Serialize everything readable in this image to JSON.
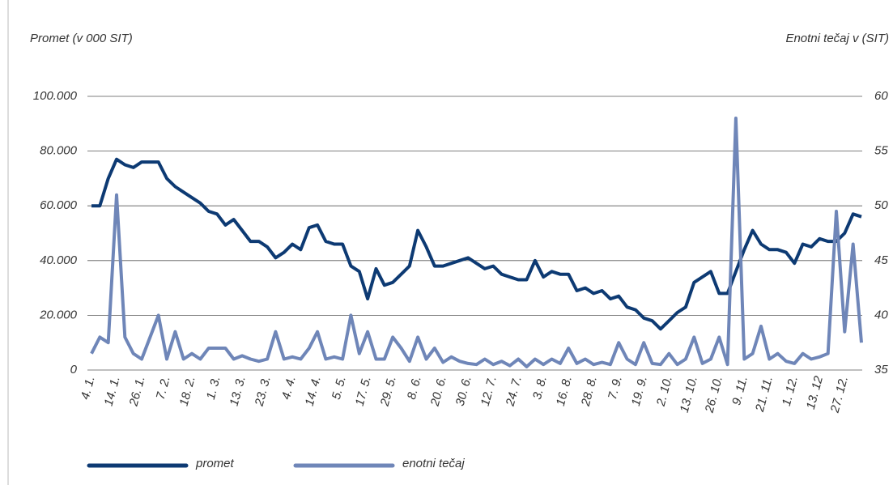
{
  "chart_data": {
    "type": "line",
    "ylabel": "Promet (v 000 SIT)",
    "y2label": "Enotni tečaj v (SIT)",
    "categories": [
      "4. 1.",
      null,
      null,
      "14. 1.",
      null,
      null,
      "26. 1.",
      null,
      null,
      "7. 2.",
      null,
      null,
      "18. 2.",
      null,
      null,
      "1. 3.",
      null,
      null,
      "13. 3.",
      null,
      null,
      "23. 3.",
      null,
      null,
      "4. 4.",
      null,
      null,
      "14. 4.",
      null,
      null,
      "5. 5.",
      null,
      null,
      "17. 5.",
      null,
      null,
      "29. 5.",
      null,
      null,
      "8. 6.",
      null,
      null,
      "20. 6.",
      null,
      null,
      "30. 6.",
      null,
      null,
      "12. 7.",
      null,
      null,
      "24. 7.",
      null,
      null,
      "3. 8.",
      null,
      null,
      "16. 8.",
      null,
      null,
      "28. 8.",
      null,
      null,
      "7. 9.",
      null,
      null,
      "19. 9.",
      null,
      null,
      "2. 10.",
      null,
      null,
      "13. 10.",
      null,
      null,
      "26. 10.",
      null,
      null,
      "9. 11.",
      null,
      null,
      "21. 11.",
      null,
      null,
      "1. 12.",
      null,
      null,
      "13. 12",
      null,
      null,
      "27. 12.",
      null,
      null
    ],
    "series": [
      {
        "name": "promet",
        "color": "#0d3a73",
        "values": [
          60000,
          60000,
          70000,
          77000,
          75000,
          74000,
          76000,
          76000,
          76000,
          70000,
          67000,
          65000,
          63000,
          61000,
          58000,
          57000,
          53000,
          55000,
          51000,
          47000,
          47000,
          45000,
          41000,
          43000,
          46000,
          44000,
          52000,
          53000,
          47000,
          46000,
          46000,
          38000,
          36000,
          26000,
          37000,
          31000,
          32000,
          35000,
          38000,
          51000,
          45000,
          38000,
          38000,
          39000,
          40000,
          41000,
          39000,
          37000,
          38000,
          35000,
          34000,
          33000,
          33000,
          40000,
          34000,
          36000,
          35000,
          35000,
          29000,
          30000,
          28000,
          29000,
          26000,
          27000,
          23000,
          22000,
          19000,
          18000,
          15000,
          18000,
          21000,
          23000,
          32000,
          34000,
          36000,
          28000,
          28000,
          36000,
          44000,
          51000,
          46000,
          44000,
          44000,
          43000,
          39000,
          46000,
          45000,
          48000,
          47000,
          47000,
          50000,
          57000,
          56000
        ]
      },
      {
        "name": "enotni tečaj",
        "color": "#6f86b8",
        "axis": "y2",
        "values": [
          36.5,
          38,
          37.5,
          51,
          38,
          36.5,
          36,
          38,
          40,
          36,
          38.5,
          36,
          36.5,
          36,
          37,
          37,
          37,
          36,
          36.3,
          36,
          35.8,
          36,
          38.5,
          36,
          36.2,
          36,
          37,
          38.5,
          36,
          36.2,
          36,
          40,
          36.5,
          38.5,
          36,
          36,
          38,
          37,
          35.8,
          38,
          36,
          37,
          35.7,
          36.2,
          35.8,
          35.6,
          35.5,
          36,
          35.5,
          35.8,
          35.4,
          36,
          35.3,
          36,
          35.5,
          36,
          35.6,
          37,
          35.6,
          36,
          35.5,
          35.7,
          35.5,
          37.5,
          36,
          35.5,
          37.5,
          35.6,
          35.5,
          36.5,
          35.5,
          36,
          38,
          35.6,
          36,
          38,
          35.5,
          58,
          36,
          36.5,
          39,
          36,
          36.5,
          35.8,
          35.6,
          36.5,
          36,
          36.2,
          36.5,
          49.5,
          38.5,
          46.5,
          37.5
        ]
      }
    ],
    "ylim": [
      0,
      100000
    ],
    "yticks": [
      0,
      {
        "value": 20000,
        "label": "20.000"
      },
      {
        "value": 40000,
        "label": "40.000"
      },
      {
        "value": 60000,
        "label": "60.000"
      },
      {
        "value": 80000,
        "label": "80.000"
      },
      {
        "value": 100000,
        "label": "100.000"
      }
    ],
    "y2lim": [
      35,
      60
    ],
    "y2ticks": [
      35,
      40,
      45,
      50,
      55,
      60
    ],
    "grid": true,
    "legend": "bottom"
  }
}
